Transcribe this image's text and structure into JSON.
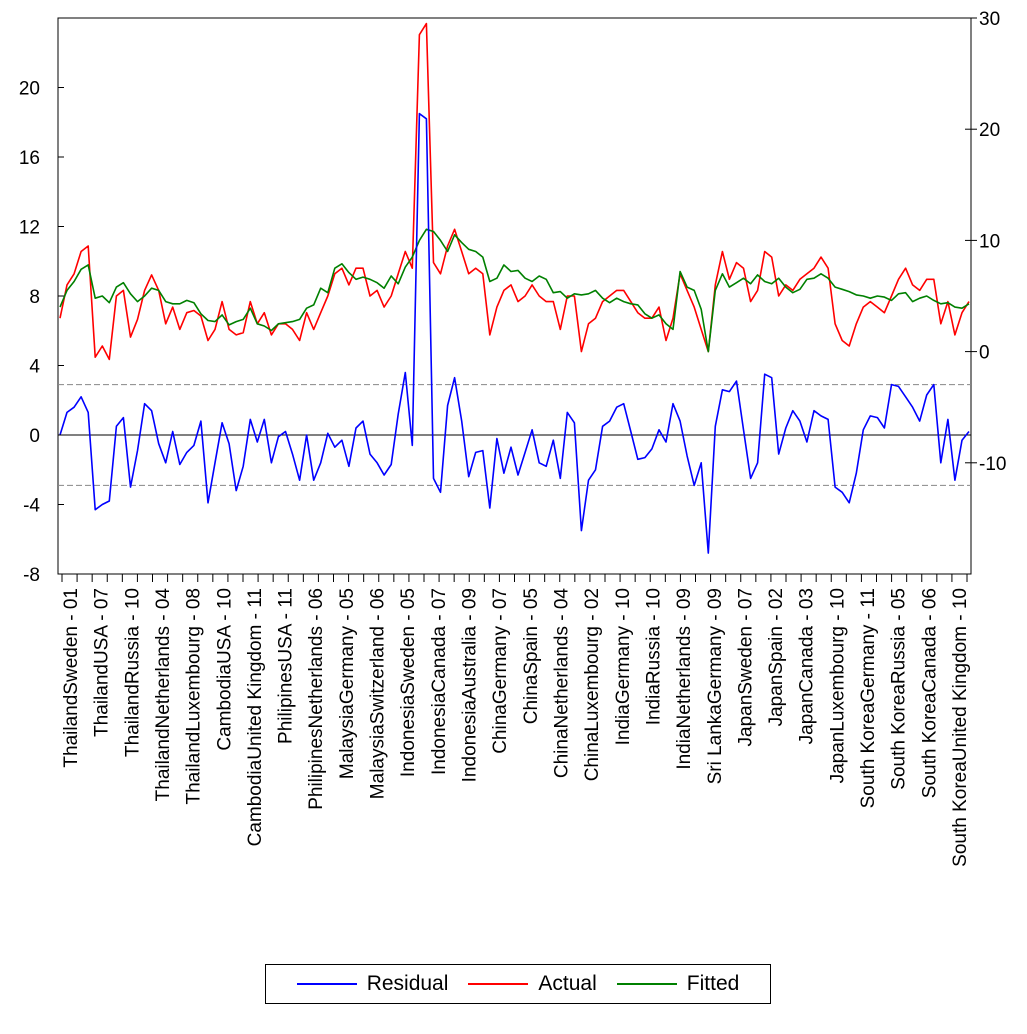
{
  "chart_data": {
    "type": "line",
    "title": "",
    "left_axis": {
      "range": [
        -8,
        24
      ],
      "ticks": [
        -8,
        -4,
        0,
        4,
        8,
        12,
        16,
        20
      ]
    },
    "right_axis": {
      "range": [
        -20,
        30
      ],
      "ticks": [
        -10,
        0,
        10,
        20,
        30
      ]
    },
    "reference_lines": {
      "zero": 0,
      "upper_band": 2.9,
      "lower_band": -2.9
    },
    "category_labels": [
      "ThailandSweden - 01",
      "ThailandUSA - 07",
      "ThailandRussia - 10",
      "ThailandNetherlands - 04",
      "ThailandLuxembourg - 08",
      "CambodiaUSA - 10",
      "CambodiaUnited Kingdom - 11",
      "PhilipinesUSA - 11",
      "PhilipinesNetherlands - 06",
      "MalaysiaGermany - 05",
      "MalaysiaSwitzerland - 06",
      "IndonesiaSweden - 05",
      "IndonesiaCanada - 07",
      "IndonesiaAustralia - 09",
      "ChinaGermany - 07",
      "ChinaSpain - 05",
      "ChinaNetherlands - 04",
      "ChinaLuxembourg - 02",
      "IndiaGermany - 10",
      "IndiaRussia - 10",
      "IndiaNetherlands - 09",
      "Sri LankaGermany - 09",
      "JapanSweden - 07",
      "JapanSpain - 02",
      "JapanCanada - 03",
      "JapanLuxembourg - 10",
      "South KoreaGermany - 11",
      "South KoreaRussia - 05",
      "South KoreaCanada - 06",
      "South KoreaUnited Kingdom - 10"
    ],
    "n_minor_ticks": 61,
    "series": [
      {
        "name": "Residual",
        "axis": "left",
        "color": "#0000ff",
        "values": [
          0.0,
          1.3,
          1.6,
          2.2,
          1.3,
          -4.3,
          -4.0,
          -3.8,
          0.5,
          1.0,
          -3.0,
          -0.9,
          1.8,
          1.4,
          -0.5,
          -1.6,
          0.2,
          -1.7,
          -1.0,
          -0.6,
          0.8,
          -3.9,
          -1.6,
          0.7,
          -0.5,
          -3.2,
          -1.8,
          0.9,
          -0.4,
          0.9,
          -1.6,
          -0.1,
          0.2,
          -1.1,
          -2.6,
          0.0,
          -2.6,
          -1.6,
          0.1,
          -0.7,
          -0.3,
          -1.8,
          0.4,
          0.8,
          -1.1,
          -1.6,
          -2.3,
          -1.7,
          1.2,
          3.6,
          -0.6,
          18.5,
          18.2,
          -2.5,
          -3.3,
          1.7,
          3.3,
          0.8,
          -2.4,
          -1.0,
          -0.9,
          -4.2,
          -0.2,
          -2.2,
          -0.7,
          -2.3,
          -1.0,
          0.3,
          -1.6,
          -1.8,
          -0.3,
          -2.5,
          1.3,
          0.7,
          -5.5,
          -2.6,
          -2.0,
          0.5,
          0.8,
          1.6,
          1.8,
          0.2,
          -1.4,
          -1.3,
          -0.8,
          0.3,
          -0.4,
          1.8,
          0.8,
          -1.2,
          -2.9,
          -1.6,
          -6.8,
          0.5,
          2.6,
          2.5,
          3.1,
          0.3,
          -2.5,
          -1.6,
          3.5,
          3.3,
          -1.1,
          0.4,
          1.4,
          0.8,
          -0.4,
          1.4,
          1.1,
          0.9,
          -3.0,
          -3.3,
          -3.9,
          -2.2,
          0.3,
          1.1,
          1.0,
          0.4,
          2.9,
          2.8,
          2.2,
          1.6,
          0.8,
          2.3,
          2.9,
          -1.6,
          0.9,
          -2.6,
          -0.3,
          0.2
        ]
      },
      {
        "name": "Actual",
        "axis": "right",
        "color": "#ff0000",
        "values": [
          3.0,
          6.0,
          7.0,
          9.0,
          9.5,
          -0.5,
          0.5,
          -0.7,
          5.0,
          5.5,
          1.3,
          2.9,
          5.5,
          6.9,
          5.5,
          2.5,
          4.0,
          2.0,
          3.5,
          3.7,
          3.2,
          1.0,
          2.0,
          4.5,
          2.0,
          1.5,
          1.7,
          4.5,
          2.5,
          3.5,
          1.5,
          2.5,
          2.5,
          2.0,
          1.0,
          3.5,
          2.0,
          3.5,
          5.0,
          7.0,
          7.5,
          6.0,
          7.5,
          7.5,
          5.0,
          5.5,
          4.0,
          5.0,
          7.0,
          9.0,
          7.5,
          28.5,
          29.5,
          8.0,
          7.0,
          9.5,
          11.0,
          9.0,
          7.0,
          7.5,
          7.0,
          1.5,
          4.0,
          5.5,
          6.0,
          4.5,
          5.0,
          6.0,
          5.0,
          4.5,
          4.5,
          2.0,
          5.0,
          5.0,
          0.0,
          2.5,
          3.0,
          4.5,
          5.0,
          5.5,
          5.5,
          4.5,
          3.5,
          3.0,
          3.0,
          4.0,
          1.0,
          3.0,
          7.0,
          5.5,
          4.0,
          2.0,
          0.0,
          6.0,
          9.0,
          6.5,
          8.0,
          7.5,
          4.5,
          5.5,
          9.0,
          8.5,
          5.0,
          6.0,
          5.5,
          6.5,
          7.0,
          7.5,
          8.5,
          7.5,
          2.5,
          1.0,
          0.5,
          2.5,
          4.0,
          4.5,
          4.0,
          3.5,
          5.0,
          6.5,
          7.5,
          6.0,
          5.5,
          6.5,
          6.5,
          2.5,
          4.5,
          1.5,
          3.5,
          4.5
        ]
      },
      {
        "name": "Fitted",
        "axis": "right",
        "color": "#008000",
        "values": [
          4.0,
          5.5,
          6.3,
          7.4,
          7.8,
          4.8,
          5.0,
          4.4,
          5.8,
          6.2,
          5.2,
          4.5,
          5.0,
          5.7,
          5.5,
          4.5,
          4.3,
          4.3,
          4.6,
          4.4,
          3.4,
          2.8,
          2.7,
          3.3,
          2.4,
          2.7,
          2.9,
          3.9,
          2.5,
          2.3,
          1.9,
          2.5,
          2.6,
          2.7,
          2.9,
          3.9,
          4.2,
          5.7,
          5.3,
          7.5,
          7.9,
          7.1,
          6.5,
          6.7,
          6.5,
          6.2,
          5.7,
          6.8,
          6.1,
          7.6,
          8.5,
          10.0,
          11.0,
          10.8,
          10.0,
          9.0,
          10.5,
          9.8,
          9.2,
          9.0,
          8.5,
          6.3,
          6.6,
          7.8,
          7.2,
          7.3,
          6.6,
          6.3,
          6.8,
          6.5,
          5.3,
          5.4,
          4.8,
          5.2,
          5.1,
          5.2,
          5.5,
          4.8,
          4.4,
          4.8,
          4.5,
          4.3,
          4.2,
          3.4,
          3.0,
          3.3,
          2.5,
          2.0,
          7.2,
          5.8,
          5.5,
          3.8,
          0.0,
          5.5,
          7.0,
          5.8,
          6.2,
          6.6,
          6.1,
          6.9,
          6.3,
          6.1,
          6.6,
          5.8,
          5.3,
          5.6,
          6.5,
          6.6,
          7.0,
          6.6,
          5.8,
          5.6,
          5.4,
          5.1,
          5.0,
          4.8,
          5.0,
          4.9,
          4.6,
          5.2,
          5.3,
          4.5,
          4.8,
          5.0,
          4.6,
          4.3,
          4.4,
          4.0,
          3.9,
          4.3
        ]
      }
    ],
    "legend": {
      "placement": "bottom-center",
      "entries": [
        "Residual",
        "Actual",
        "Fitted"
      ]
    }
  }
}
